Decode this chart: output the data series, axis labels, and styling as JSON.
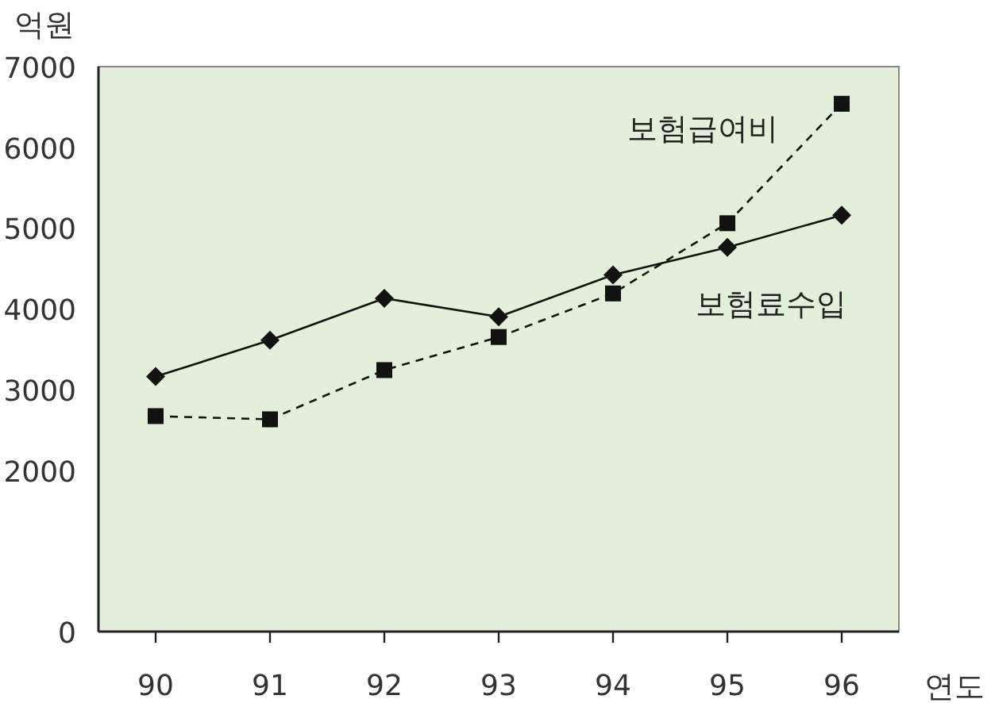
{
  "chart_data": {
    "type": "line",
    "xlabel": "연도",
    "ylabel": "억원",
    "categories": [
      "90",
      "91",
      "92",
      "93",
      "94",
      "95",
      "96"
    ],
    "ylim": [
      0,
      7000
    ],
    "yticks": [
      0,
      2000,
      3000,
      4000,
      5000,
      6000,
      7000
    ],
    "series": [
      {
        "name": "보험료수입",
        "color": "#111111",
        "marker": "diamond",
        "line_style": "solid",
        "values": [
          3160,
          3610,
          4130,
          3900,
          4420,
          4760,
          5160
        ]
      },
      {
        "name": "보험급여비",
        "color": "#111111",
        "marker": "square",
        "line_style": "dashed",
        "values": [
          2670,
          2630,
          3240,
          3650,
          4190,
          5060,
          6540
        ]
      }
    ]
  }
}
